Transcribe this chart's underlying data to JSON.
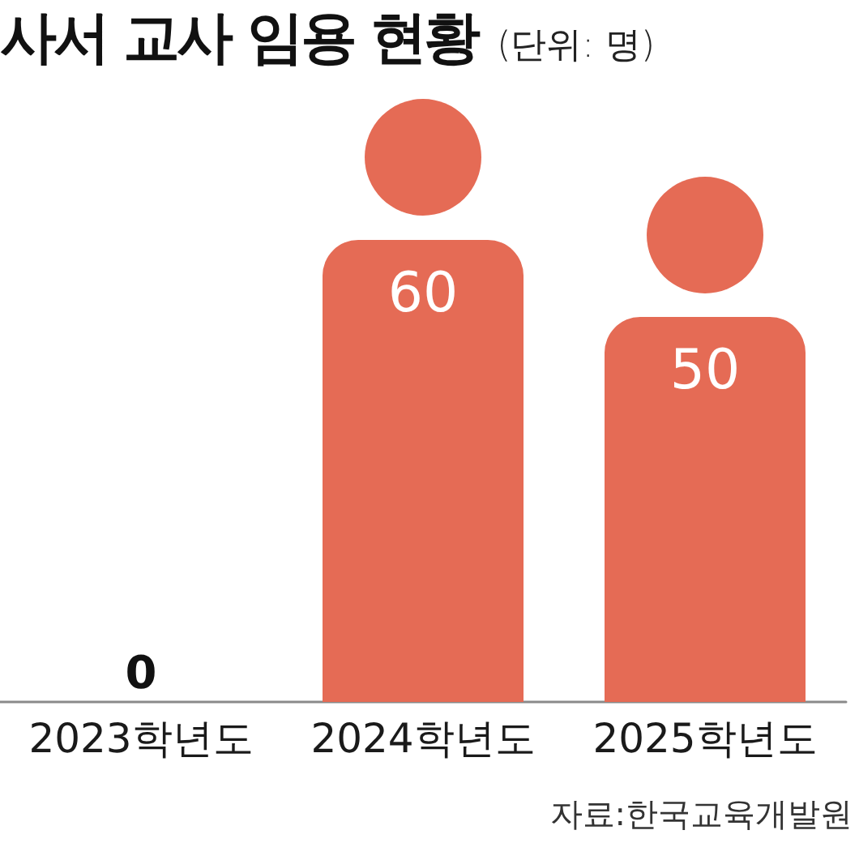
{
  "chart_data": {
    "type": "bar",
    "title": "사서 교사 임용 현황",
    "subtitle": "(단위: 명)",
    "categories": [
      "2023학년도",
      "2024학년도",
      "2025학년도"
    ],
    "values": [
      0,
      60,
      50
    ],
    "color": "#e56b55",
    "data_labels": true,
    "annotations": [
      "자료:한국교육개발원"
    ]
  }
}
